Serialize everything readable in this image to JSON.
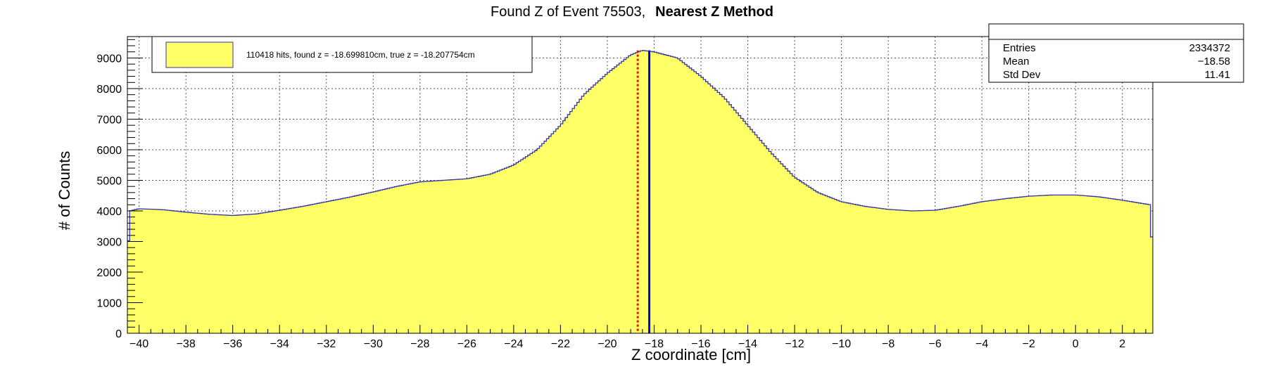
{
  "chart_data": {
    "type": "histogram",
    "title_prefix": "Found Z of Event 75503,",
    "title_method": "Nearest Z Method",
    "xlabel": "Z coordinate [cm]",
    "ylabel": "# of Counts",
    "xlim": [
      -40.5,
      3.3
    ],
    "ylim": [
      0,
      9700
    ],
    "x_ticks": [
      -40,
      -38,
      -36,
      -34,
      -32,
      -30,
      -28,
      -26,
      -24,
      -22,
      -20,
      -18,
      -16,
      -14,
      -12,
      -10,
      -8,
      -6,
      -4,
      -2,
      0,
      2
    ],
    "x_tick_labels": [
      "−40",
      "−38",
      "−36",
      "−34",
      "−32",
      "−30",
      "−28",
      "−26",
      "−24",
      "−22",
      "−20",
      "−18",
      "−16",
      "−14",
      "−12",
      "−10",
      "−8",
      "−6",
      "−4",
      "−2",
      "0",
      "2"
    ],
    "y_ticks": [
      0,
      1000,
      2000,
      3000,
      4000,
      5000,
      6000,
      7000,
      8000,
      9000
    ],
    "y_tick_labels": [
      "0",
      "1000",
      "2000",
      "3000",
      "4000",
      "5000",
      "6000",
      "7000",
      "8000",
      "9000"
    ],
    "grid": true,
    "legend_position": "top-left",
    "legend_label": "110418 hits, found z = -18.699810cm, true z = -18.207754cm",
    "profile": [
      [
        -40.5,
        2050
      ],
      [
        -40.4,
        4000
      ],
      [
        -40.0,
        4070
      ],
      [
        -39.0,
        4040
      ],
      [
        -38.0,
        3960
      ],
      [
        -37.0,
        3890
      ],
      [
        -36.0,
        3850
      ],
      [
        -35.0,
        3900
      ],
      [
        -34.0,
        4020
      ],
      [
        -33.0,
        4150
      ],
      [
        -32.0,
        4300
      ],
      [
        -31.0,
        4450
      ],
      [
        -30.0,
        4620
      ],
      [
        -29.0,
        4800
      ],
      [
        -28.0,
        4950
      ],
      [
        -27.0,
        5000
      ],
      [
        -26.0,
        5050
      ],
      [
        -25.0,
        5200
      ],
      [
        -24.0,
        5500
      ],
      [
        -23.0,
        6000
      ],
      [
        -22.0,
        6800
      ],
      [
        -21.0,
        7800
      ],
      [
        -20.0,
        8500
      ],
      [
        -19.0,
        9100
      ],
      [
        -18.5,
        9250
      ],
      [
        -18.0,
        9200
      ],
      [
        -17.0,
        9000
      ],
      [
        -16.0,
        8400
      ],
      [
        -15.0,
        7700
      ],
      [
        -14.0,
        6800
      ],
      [
        -13.0,
        5900
      ],
      [
        -12.0,
        5100
      ],
      [
        -11.0,
        4600
      ],
      [
        -10.0,
        4300
      ],
      [
        -9.0,
        4150
      ],
      [
        -8.0,
        4050
      ],
      [
        -7.0,
        4000
      ],
      [
        -6.0,
        4020
      ],
      [
        -5.0,
        4150
      ],
      [
        -4.0,
        4300
      ],
      [
        -3.0,
        4400
      ],
      [
        -2.0,
        4480
      ],
      [
        -1.0,
        4520
      ],
      [
        0.0,
        4520
      ],
      [
        1.0,
        4460
      ],
      [
        2.0,
        4350
      ],
      [
        3.2,
        4200
      ],
      [
        3.3,
        2100
      ]
    ],
    "found_z": -18.69981,
    "true_z": -18.207754,
    "found_z_style": {
      "color": "#ff0000",
      "dash": "dotted"
    },
    "true_z_style": {
      "color": "#0000ff",
      "dash": "solid"
    },
    "fill_color": "#ffff66",
    "line_color": "#3333aa"
  },
  "stats": {
    "rows": [
      {
        "label": "Entries",
        "value": "2334372"
      },
      {
        "label": "Mean",
        "value": "−18.58"
      },
      {
        "label": "Std Dev",
        "value": "11.41"
      }
    ]
  }
}
